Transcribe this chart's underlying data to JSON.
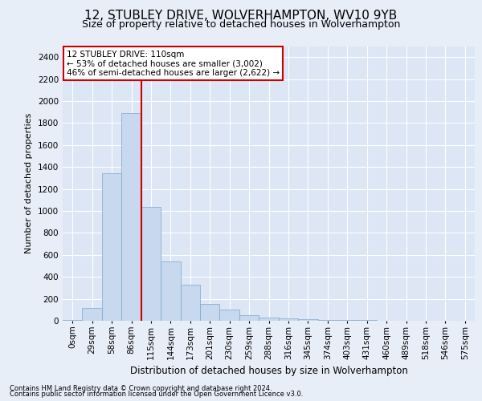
{
  "title1": "12, STUBLEY DRIVE, WOLVERHAMPTON, WV10 9YB",
  "title2": "Size of property relative to detached houses in Wolverhampton",
  "xlabel": "Distribution of detached houses by size in Wolverhampton",
  "ylabel": "Number of detached properties",
  "categories": [
    "0sqm",
    "29sqm",
    "58sqm",
    "86sqm",
    "115sqm",
    "144sqm",
    "173sqm",
    "201sqm",
    "230sqm",
    "259sqm",
    "288sqm",
    "316sqm",
    "345sqm",
    "374sqm",
    "403sqm",
    "431sqm",
    "460sqm",
    "489sqm",
    "518sqm",
    "546sqm",
    "575sqm"
  ],
  "values": [
    10,
    120,
    1340,
    1890,
    1040,
    540,
    330,
    155,
    100,
    50,
    30,
    20,
    15,
    10,
    8,
    5,
    3,
    2,
    0,
    1,
    0
  ],
  "bar_color": "#c8d8ee",
  "bar_edge_color": "#7aa8cc",
  "vline_color": "#cc0000",
  "annotation_text": "12 STUBLEY DRIVE: 110sqm\n← 53% of detached houses are smaller (3,002)\n46% of semi-detached houses are larger (2,622) →",
  "annotation_box_color": "#ffffff",
  "annotation_box_edge": "#cc0000",
  "ylim": [
    0,
    2500
  ],
  "yticks": [
    0,
    200,
    400,
    600,
    800,
    1000,
    1200,
    1400,
    1600,
    1800,
    2000,
    2200,
    2400
  ],
  "footer1": "Contains HM Land Registry data © Crown copyright and database right 2024.",
  "footer2": "Contains public sector information licensed under the Open Government Licence v3.0.",
  "bg_color": "#e8eef8",
  "plot_bg_color": "#dce6f5",
  "grid_color": "#ffffff",
  "title1_fontsize": 11,
  "title2_fontsize": 9,
  "xlabel_fontsize": 8.5,
  "ylabel_fontsize": 8,
  "footer_fontsize": 6,
  "tick_fontsize": 7.5,
  "annot_fontsize": 7.5,
  "vline_x_idx": 3.5
}
